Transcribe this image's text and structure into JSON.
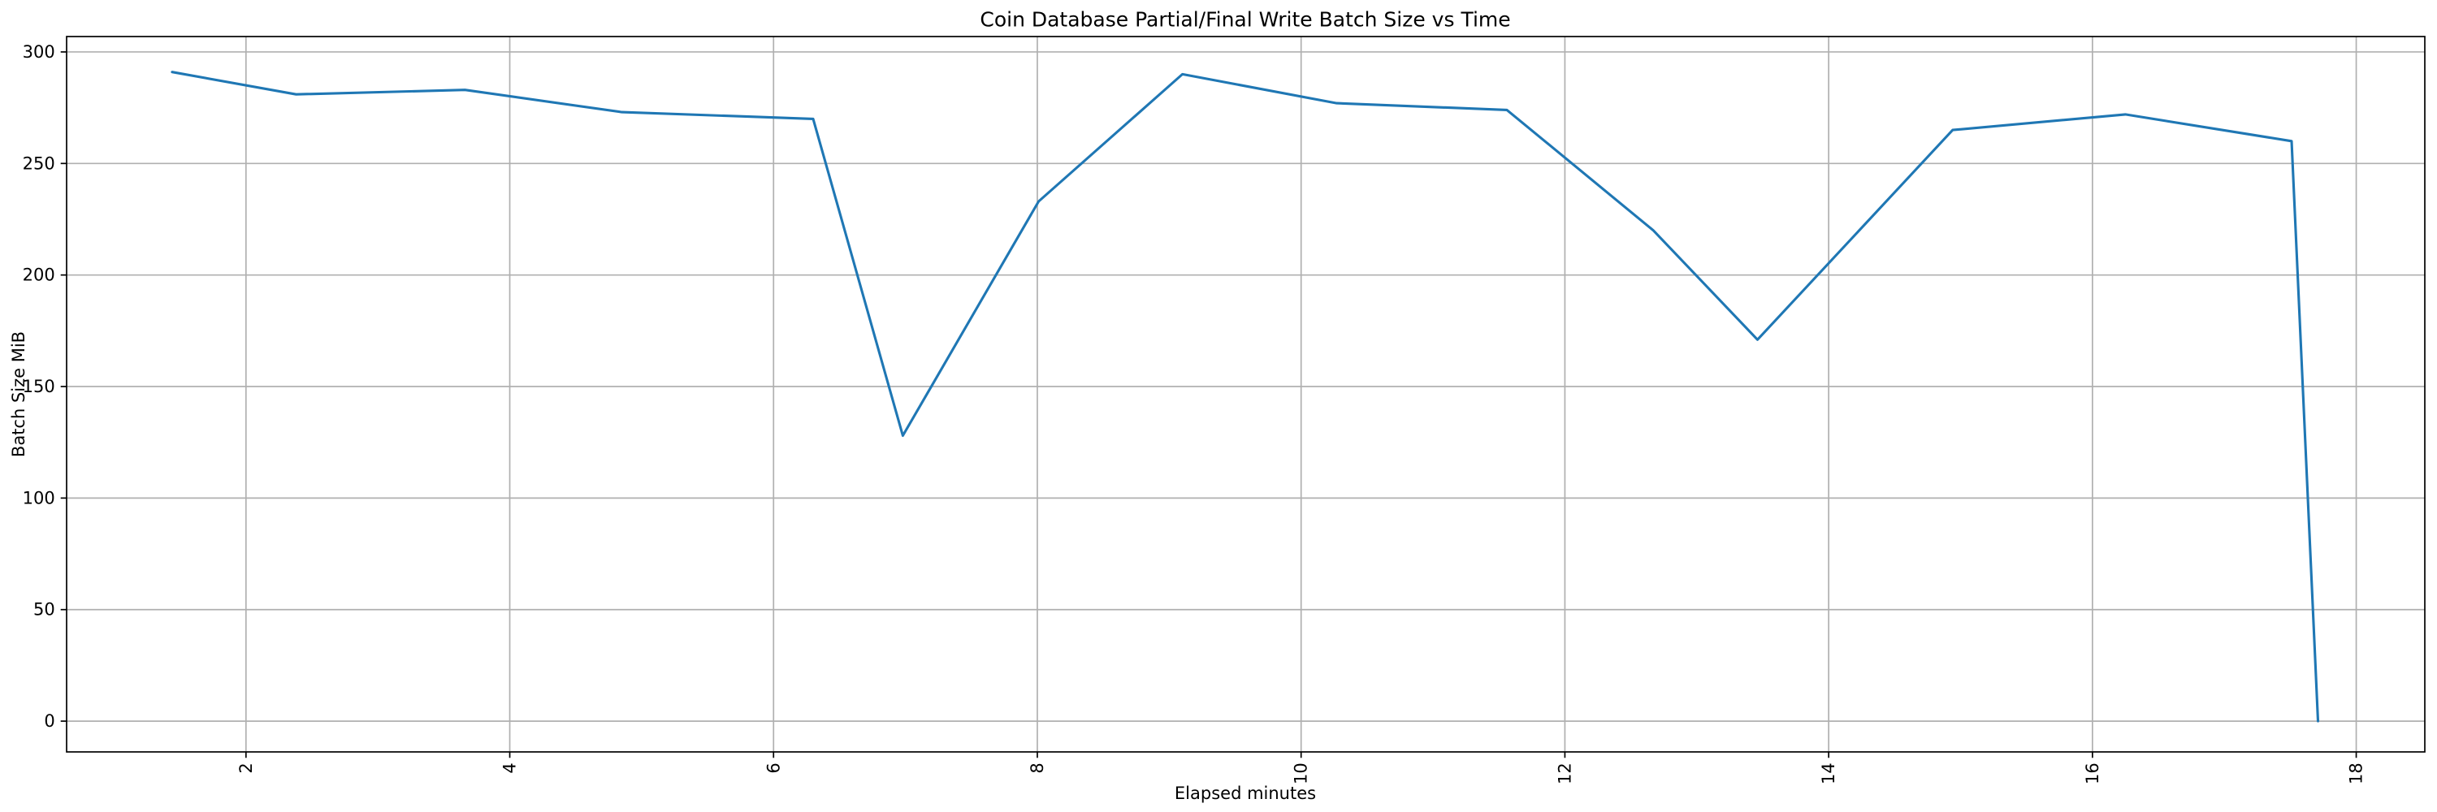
{
  "figure": {
    "background": "#ffffff"
  },
  "chart_data": {
    "type": "line",
    "title": "Coin Database Partial/Final Write Batch Size vs Time",
    "xlabel": "Elapsed minutes",
    "ylabel": "Batch Size MiB",
    "series": [
      {
        "name": "batch-size-mib",
        "color": "#1f77b4",
        "x": [
          1.44,
          2.38,
          3.66,
          4.85,
          5.81,
          6.3,
          6.98,
          8.01,
          9.1,
          10.27,
          11.56,
          12.67,
          13.46,
          14.94,
          16.25,
          17.51,
          17.71
        ],
        "y": [
          291,
          281,
          283,
          273,
          271,
          270,
          128,
          233,
          290,
          277,
          274,
          220,
          171,
          265,
          272,
          260,
          0
        ]
      }
    ],
    "xlim": [
      0.64,
      18.52
    ],
    "ylim": [
      -13.8,
      306.9
    ],
    "xticks": [
      2,
      4,
      6,
      8,
      10,
      12,
      14,
      16,
      18
    ],
    "yticks": [
      0,
      50,
      100,
      150,
      200,
      250,
      300
    ],
    "x_tick_rotation": 90,
    "grid": true,
    "grid_color": "#b0b0b0",
    "spine_color": "#000000",
    "text_color": "#000000"
  }
}
